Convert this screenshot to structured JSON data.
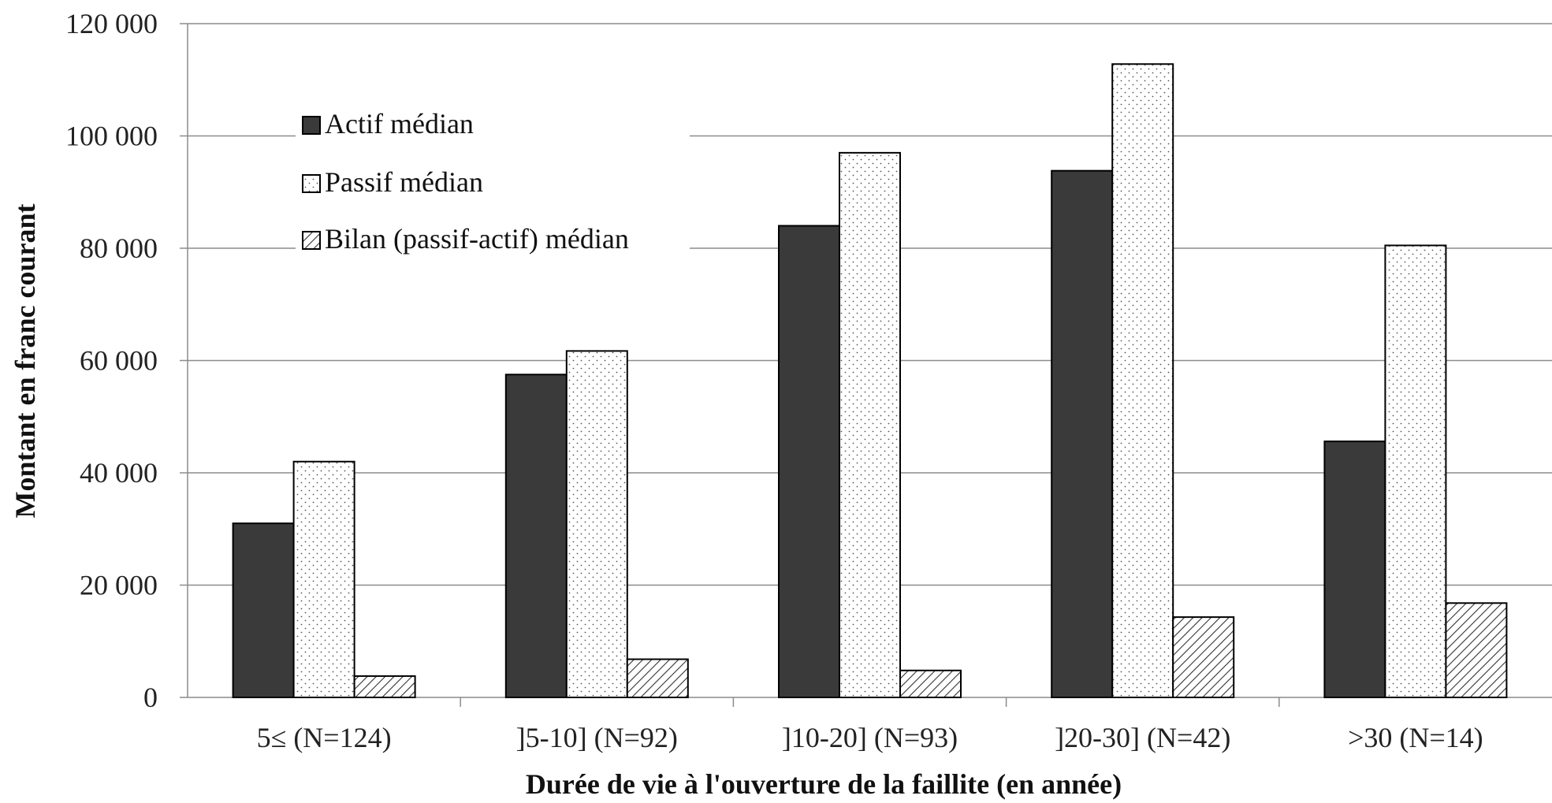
{
  "chart_data": {
    "type": "bar",
    "xlabel": "Durée de vie à l'ouverture de la faillite (en année)",
    "ylabel": "Montant en franc courant",
    "ylim": [
      0,
      120000
    ],
    "yticks": [
      0,
      20000,
      40000,
      60000,
      80000,
      100000,
      120000
    ],
    "ytick_labels": [
      "0",
      "20 000",
      "40 000",
      "60 000",
      "80 000",
      "100 000",
      "120 000"
    ],
    "grid": true,
    "legend_position": "top-left",
    "categories": [
      "5≤ (N=124)",
      "]5-10] (N=92)",
      "]10-20] (N=93)",
      "]20-30] (N=42)",
      ">30 (N=14)"
    ],
    "series": [
      {
        "name": "Actif médian",
        "values": [
          31000,
          57500,
          84000,
          93800,
          45600
        ],
        "color": "#3a3a3a",
        "pattern": "solid"
      },
      {
        "name": "Passif médian",
        "values": [
          42000,
          61700,
          97000,
          112800,
          80500
        ],
        "color": "#ffffff",
        "pattern": "dots"
      },
      {
        "name": "Bilan (passif-actif) médian",
        "values": [
          3800,
          6800,
          4800,
          14300,
          16800
        ],
        "color": "#ffffff",
        "pattern": "hatch"
      }
    ]
  }
}
